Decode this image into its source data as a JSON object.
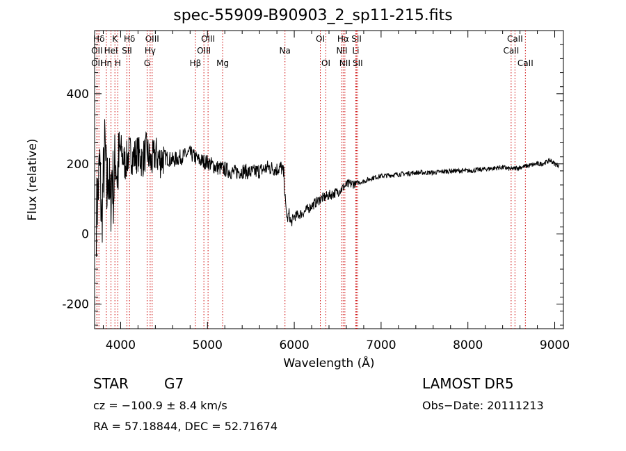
{
  "chart_data": {
    "type": "line",
    "title": "spec-55909-B90903_2_sp11-215.fits",
    "xlabel": "Wavelength (Å)",
    "ylabel": "Flux (relative)",
    "xlim": [
      3700,
      9100
    ],
    "ylim": [
      -270,
      580
    ],
    "xticks": [
      4000,
      5000,
      6000,
      7000,
      8000,
      9000
    ],
    "yticks": [
      -200,
      0,
      200,
      400
    ],
    "grid": false,
    "line_color": "#000000",
    "marker_color": "#cc0000",
    "series": [
      {
        "x": [
          3720,
          3740,
          3760,
          3780,
          3800,
          3820,
          3840,
          3860,
          3880,
          3900,
          3920,
          3940,
          3960,
          3980,
          4000,
          4050,
          4100,
          4150,
          4200,
          4250,
          4300,
          4350,
          4400,
          4450,
          4500,
          4600,
          4700,
          4800,
          4900,
          5000,
          5100,
          5200,
          5300,
          5400,
          5500,
          5600,
          5700,
          5800,
          5850,
          5880,
          5900,
          5920,
          5940,
          5960,
          6000,
          6100,
          6200,
          6300,
          6400,
          6500,
          6600,
          6700,
          6800,
          6900,
          7000,
          7200,
          7400,
          7600,
          7800,
          8000,
          8200,
          8400,
          8500,
          8600,
          8700,
          8800,
          8850,
          8900,
          8950,
          9000,
          9050
        ],
        "y": [
          50,
          120,
          200,
          30,
          150,
          250,
          100,
          200,
          60,
          180,
          120,
          230,
          170,
          200,
          240,
          200,
          230,
          220,
          230,
          210,
          240,
          200,
          230,
          210,
          220,
          210,
          220,
          230,
          210,
          205,
          190,
          185,
          175,
          180,
          175,
          180,
          190,
          185,
          190,
          170,
          80,
          40,
          60,
          30,
          50,
          60,
          80,
          100,
          110,
          120,
          140,
          145,
          150,
          160,
          165,
          170,
          175,
          175,
          180,
          180,
          185,
          190,
          185,
          190,
          195,
          200,
          200,
          205,
          210,
          200,
          195
        ]
      }
    ],
    "line_markers": [
      {
        "label": "Hδ",
        "x": 3750,
        "row": 1
      },
      {
        "label": "OII",
        "x": 3727,
        "row": 2
      },
      {
        "label": "OII",
        "x": 3727,
        "row": 3
      },
      {
        "label": "Hη",
        "x": 3835,
        "row": 3
      },
      {
        "label": "K",
        "x": 3934,
        "row": 1
      },
      {
        "label": "HeI",
        "x": 3889,
        "row": 2
      },
      {
        "label": "H",
        "x": 3968,
        "row": 3
      },
      {
        "label": "Hδ",
        "x": 4102,
        "row": 1
      },
      {
        "label": "SII",
        "x": 4072,
        "row": 2
      },
      {
        "label": "OIII",
        "x": 4363,
        "row": 1
      },
      {
        "label": "Hγ",
        "x": 4340,
        "row": 2
      },
      {
        "label": "G",
        "x": 4305,
        "row": 3
      },
      {
        "label": "OIII",
        "x": 5007,
        "row": 1
      },
      {
        "label": "OIII",
        "x": 4959,
        "row": 2
      },
      {
        "label": "Hβ",
        "x": 4861,
        "row": 3
      },
      {
        "label": "Mg",
        "x": 5175,
        "row": 3
      },
      {
        "label": "Na",
        "x": 5893,
        "row": 2
      },
      {
        "label": "OI",
        "x": 6300,
        "row": 1
      },
      {
        "label": "OI",
        "x": 6364,
        "row": 3
      },
      {
        "label": "Hα",
        "x": 6563,
        "row": 1
      },
      {
        "label": "SII",
        "x": 6717,
        "row": 1
      },
      {
        "label": "NII",
        "x": 6548,
        "row": 2
      },
      {
        "label": "Li",
        "x": 6708,
        "row": 2
      },
      {
        "label": "NII",
        "x": 6583,
        "row": 3
      },
      {
        "label": "SII",
        "x": 6731,
        "row": 3
      },
      {
        "label": "CaII",
        "x": 8542,
        "row": 1
      },
      {
        "label": "CaII",
        "x": 8498,
        "row": 2
      },
      {
        "label": "CaII",
        "x": 8662,
        "row": 3
      }
    ]
  },
  "footer": {
    "object_class": "STAR",
    "subclass": "G7",
    "survey": "LAMOST DR5",
    "redshift_text": "cz = −100.9 ± 8.4 km/s",
    "obs_date_text": "Obs−Date: 20111213",
    "coords_text": "RA =  57.18844, DEC =  52.71674"
  }
}
